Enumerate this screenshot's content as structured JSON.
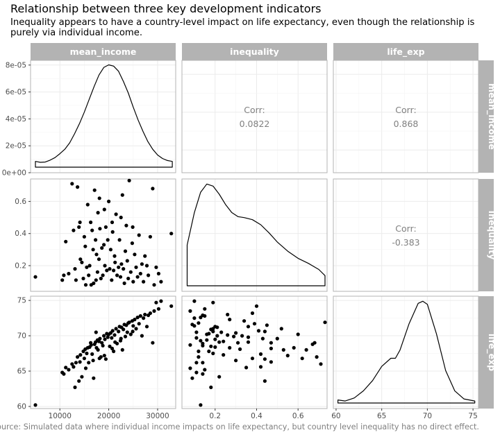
{
  "title": "Relationship between three key development indicators",
  "subtitle": "Inequality appears to have a country-level impact on life expectancy, even though the relationship is purely via individual income.",
  "caption": "Source: Simulated data where individual income impacts on life expectancy, but country level inequality has no direct effect.",
  "chart_data": {
    "type": "scatter",
    "variables": [
      "mean_income",
      "inequality",
      "life_exp"
    ],
    "axes": {
      "mean_income": {
        "range": [
          4000,
          33700
        ],
        "ticks": [
          10000,
          20000,
          30000
        ],
        "tick_labels": [
          "10000",
          "20000",
          "30000"
        ]
      },
      "inequality": {
        "range": [
          0.04,
          0.74
        ],
        "ticks": [
          0.2,
          0.4,
          0.6
        ],
        "tick_labels": [
          "0.2",
          "0.4",
          "0.6"
        ]
      },
      "life_exp": {
        "range": [
          59.7,
          75.6
        ],
        "ticks": [
          60,
          65,
          70,
          75
        ],
        "tick_labels": [
          "60",
          "65",
          "70",
          "75"
        ]
      }
    },
    "density_axis": {
      "range": [
        0,
        8.35e-05
      ],
      "ticks": [
        0,
        2e-05,
        4e-05,
        6e-05,
        8e-05
      ],
      "tick_labels": [
        "0e+00",
        "2e-05",
        "4e-05",
        "6e-05",
        "8e-05"
      ]
    },
    "correlations": [
      {
        "pair": [
          "mean_income",
          "inequality"
        ],
        "label": "Corr:",
        "value": "0.0822"
      },
      {
        "pair": [
          "mean_income",
          "life_exp"
        ],
        "label": "Corr:",
        "value": "0.868"
      },
      {
        "pair": [
          "inequality",
          "life_exp"
        ],
        "label": "Corr:",
        "value": "-0.383"
      }
    ],
    "densities": {
      "mean_income": {
        "x": [
          5000,
          6000,
          7000,
          8000,
          9000,
          10000,
          11000,
          12000,
          13000,
          14000,
          15000,
          16000,
          17000,
          18000,
          19000,
          20000,
          21000,
          22000,
          23000,
          24000,
          25000,
          26000,
          27000,
          28000,
          29000,
          30000,
          31000,
          32000,
          33000
        ],
        "y": [
          4.5e-06,
          3.8e-06,
          4e-06,
          5.5e-06,
          7.5e-06,
          1.05e-05,
          1.4e-05,
          1.9e-05,
          2.6e-05,
          3.4e-05,
          4.3e-05,
          5.3e-05,
          6.3e-05,
          7.2e-05,
          7.8e-05,
          8e-05,
          7.9e-05,
          7.5e-05,
          6.7e-05,
          5.8e-05,
          4.7e-05,
          3.7e-05,
          2.8e-05,
          2e-05,
          1.4e-05,
          9.5e-06,
          6.8e-06,
          5.2e-06,
          4.5e-06
        ]
      },
      "inequality": {
        "x": [
          0.065,
          0.1,
          0.13,
          0.16,
          0.19,
          0.22,
          0.25,
          0.28,
          0.31,
          0.34,
          0.38,
          0.42,
          0.46,
          0.5,
          0.55,
          0.6,
          0.65,
          0.7,
          0.73
        ],
        "y": [
          0.4,
          0.72,
          0.92,
          1.0,
          0.98,
          0.9,
          0.8,
          0.72,
          0.68,
          0.67,
          0.65,
          0.6,
          0.52,
          0.43,
          0.34,
          0.27,
          0.22,
          0.16,
          0.1
        ]
      },
      "life_exp": {
        "x": [
          60.2,
          61,
          62,
          63,
          64,
          65,
          66,
          66.5,
          67,
          68,
          69,
          69.5,
          70,
          71,
          72,
          73,
          74,
          75.2
        ],
        "y": [
          0.03,
          0.02,
          0.05,
          0.12,
          0.22,
          0.36,
          0.44,
          0.44,
          0.52,
          0.78,
          0.98,
          1.0,
          0.97,
          0.68,
          0.32,
          0.12,
          0.04,
          0.02
        ]
      }
    },
    "points": [
      [
        5000,
        0.13,
        60.2
      ],
      [
        10500,
        0.11,
        64.8
      ],
      [
        10800,
        0.14,
        64.6
      ],
      [
        11200,
        0.35,
        65.5
      ],
      [
        11800,
        0.15,
        65.2
      ],
      [
        12500,
        0.71,
        66.0
      ],
      [
        12800,
        0.42,
        65.6
      ],
      [
        13100,
        0.18,
        62.7
      ],
      [
        13300,
        0.11,
        66.2
      ],
      [
        13600,
        0.69,
        67.0
      ],
      [
        13900,
        0.44,
        63.6
      ],
      [
        14100,
        0.47,
        66.3
      ],
      [
        14200,
        0.24,
        67.3
      ],
      [
        14500,
        0.22,
        64.2
      ],
      [
        14800,
        0.12,
        67.8
      ],
      [
        15000,
        0.38,
        66.8
      ],
      [
        15200,
        0.32,
        68.1
      ],
      [
        15300,
        0.08,
        65.4
      ],
      [
        15500,
        0.19,
        67.5
      ],
      [
        15700,
        0.58,
        68.3
      ],
      [
        15900,
        0.14,
        66.2
      ],
      [
        16100,
        0.2,
        68.4
      ],
      [
        16300,
        0.47,
        69.0
      ],
      [
        16400,
        0.08,
        68.7
      ],
      [
        16600,
        0.42,
        67.4
      ],
      [
        16900,
        0.09,
        64.0
      ],
      [
        17100,
        0.67,
        68.8
      ],
      [
        17300,
        0.36,
        69.1
      ],
      [
        17500,
        0.27,
        68.3
      ],
      [
        17700,
        0.16,
        69.4
      ],
      [
        17800,
        0.53,
        68.0
      ],
      [
        18000,
        0.24,
        69.2
      ],
      [
        18200,
        0.43,
        69.6
      ],
      [
        18400,
        0.12,
        67.0
      ],
      [
        18600,
        0.31,
        69.0
      ],
      [
        18800,
        0.14,
        68.6
      ],
      [
        19000,
        0.33,
        70.0
      ],
      [
        19200,
        0.2,
        69.5
      ],
      [
        19400,
        0.44,
        66.7
      ],
      [
        19600,
        0.17,
        70.3
      ],
      [
        19800,
        0.36,
        69.8
      ],
      [
        20000,
        0.6,
        70.2
      ],
      [
        20200,
        0.18,
        68.5
      ],
      [
        20400,
        0.3,
        70.4
      ],
      [
        20600,
        0.11,
        69.7
      ],
      [
        20800,
        0.41,
        70.7
      ],
      [
        21000,
        0.17,
        67.8
      ],
      [
        21200,
        0.26,
        70.1
      ],
      [
        21500,
        0.52,
        71.0
      ],
      [
        21700,
        0.14,
        68.9
      ],
      [
        22000,
        0.19,
        70.6
      ],
      [
        22200,
        0.36,
        71.3
      ],
      [
        22400,
        0.13,
        69.3
      ],
      [
        22600,
        0.21,
        71.2
      ],
      [
        22800,
        0.64,
        68.0
      ],
      [
        23000,
        0.18,
        70.9
      ],
      [
        23200,
        0.09,
        71.6
      ],
      [
        23400,
        0.29,
        69.9
      ],
      [
        23600,
        0.45,
        71.5
      ],
      [
        23800,
        0.23,
        70.5
      ],
      [
        24000,
        0.12,
        71.8
      ],
      [
        24200,
        0.73,
        71.9
      ],
      [
        24500,
        0.16,
        70.2
      ],
      [
        24800,
        0.34,
        72.1
      ],
      [
        25000,
        0.1,
        71.4
      ],
      [
        25300,
        0.27,
        72.3
      ],
      [
        25600,
        0.19,
        71.0
      ],
      [
        25900,
        0.13,
        72.6
      ],
      [
        26200,
        0.39,
        71.7
      ],
      [
        26500,
        0.15,
        72.8
      ],
      [
        26800,
        0.21,
        70.0
      ],
      [
        27100,
        0.1,
        72.5
      ],
      [
        27400,
        0.26,
        73.0
      ],
      [
        27800,
        0.2,
        71.3
      ],
      [
        28100,
        0.14,
        72.9
      ],
      [
        28500,
        0.38,
        73.2
      ],
      [
        29000,
        0.68,
        69.0
      ],
      [
        29300,
        0.08,
        73.5
      ],
      [
        29700,
        0.19,
        74.7
      ],
      [
        30200,
        0.15,
        73.8
      ],
      [
        30700,
        0.1,
        74.9
      ],
      [
        32800,
        0.4,
        74.2
      ],
      [
        19100,
        0.55,
        67.2
      ],
      [
        16800,
        0.3,
        66.5
      ],
      [
        22500,
        0.5,
        69.6
      ],
      [
        24900,
        0.44,
        70.6
      ],
      [
        18100,
        0.62,
        66.8
      ],
      [
        21300,
        0.22,
        69.1
      ],
      [
        20700,
        0.47,
        68.2
      ],
      [
        17400,
        0.11,
        70.5
      ]
    ]
  }
}
